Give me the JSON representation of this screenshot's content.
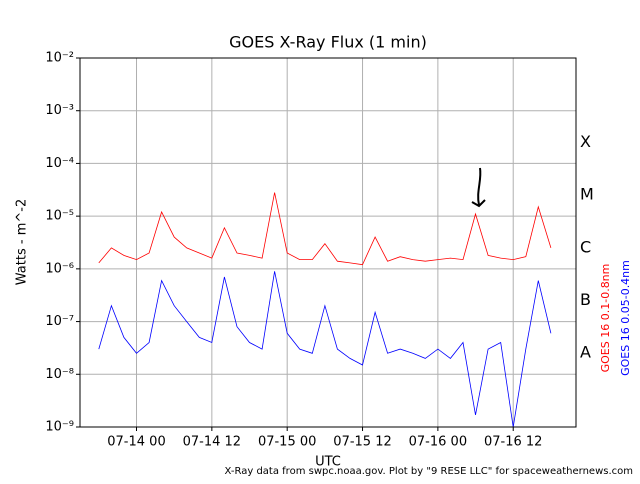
{
  "chart_data": {
    "type": "line",
    "title": "GOES X-Ray Flux (1 min)",
    "x_label": "UTC",
    "y_label": "Watts - m^-2",
    "footnote": "X-Ray data from swpc.noaa.gov. Plot by \"9 RESE LLC\" for spaceweathernews.com",
    "yscale": "log",
    "grid": true,
    "xlim": [
      "07-13 15",
      "07-16 22"
    ],
    "xticks": [
      "07-14 00",
      "07-14 12",
      "07-15 00",
      "07-15 12",
      "07-16 00",
      "07-16 12"
    ],
    "ylim": [
      1e-09,
      0.01
    ],
    "yticks": [
      {
        "value": 1e-09,
        "label": "10⁻⁹"
      },
      {
        "value": 1e-08,
        "label": "10⁻⁸"
      },
      {
        "value": 1e-07,
        "label": "10⁻⁷"
      },
      {
        "value": 1e-06,
        "label": "10⁻⁶"
      },
      {
        "value": 1e-05,
        "label": "10⁻⁵"
      },
      {
        "value": 0.0001,
        "label": "10⁻⁴"
      },
      {
        "value": 0.001,
        "label": "10⁻³"
      },
      {
        "value": 0.01,
        "label": "10⁻²"
      }
    ],
    "flare_classes": [
      "A",
      "B",
      "C",
      "M",
      "X"
    ],
    "x": [
      "07-13 18",
      "07-13 20",
      "07-13 22",
      "07-14 00",
      "07-14 02",
      "07-14 04",
      "07-14 06",
      "07-14 08",
      "07-14 10",
      "07-14 12",
      "07-14 14",
      "07-14 16",
      "07-14 18",
      "07-14 20",
      "07-14 22",
      "07-15 00",
      "07-15 02",
      "07-15 04",
      "07-15 06",
      "07-15 08",
      "07-15 10",
      "07-15 12",
      "07-15 14",
      "07-15 16",
      "07-15 18",
      "07-15 20",
      "07-15 22",
      "07-16 00",
      "07-16 02",
      "07-16 04",
      "07-16 06",
      "07-16 08",
      "07-16 10",
      "07-16 12",
      "07-16 14",
      "07-16 16",
      "07-16 18"
    ],
    "series": [
      {
        "name": "GOES 16 0.1-0.8nm",
        "color": "#ff0000",
        "values": [
          1.3e-06,
          2.5e-06,
          1.8e-06,
          1.5e-06,
          2e-06,
          1.2e-05,
          4e-06,
          2.5e-06,
          2e-06,
          1.6e-06,
          6e-06,
          2e-06,
          1.8e-06,
          1.6e-06,
          2.8e-05,
          2e-06,
          1.5e-06,
          1.5e-06,
          3e-06,
          1.4e-06,
          1.3e-06,
          1.2e-06,
          4e-06,
          1.4e-06,
          1.7e-06,
          1.5e-06,
          1.4e-06,
          1.5e-06,
          1.6e-06,
          1.5e-06,
          1.1e-05,
          1.8e-06,
          1.6e-06,
          1.5e-06,
          1.7e-06,
          1.5e-05,
          2.5e-06
        ]
      },
      {
        "name": "GOES 16 0.05-0.4nm",
        "color": "#0000ff",
        "values": [
          3e-08,
          2e-07,
          5e-08,
          2.5e-08,
          4e-08,
          6e-07,
          2e-07,
          1e-07,
          5e-08,
          4e-08,
          7e-07,
          8e-08,
          4e-08,
          3e-08,
          9e-07,
          6e-08,
          3e-08,
          2.5e-08,
          2e-07,
          3e-08,
          2e-08,
          1.5e-08,
          1.5e-07,
          2.5e-08,
          3e-08,
          2.5e-08,
          2e-08,
          3e-08,
          2e-08,
          4e-08,
          1.7e-09,
          3e-08,
          4e-08,
          1e-09,
          3e-08,
          6e-07,
          6e-08
        ]
      }
    ]
  }
}
